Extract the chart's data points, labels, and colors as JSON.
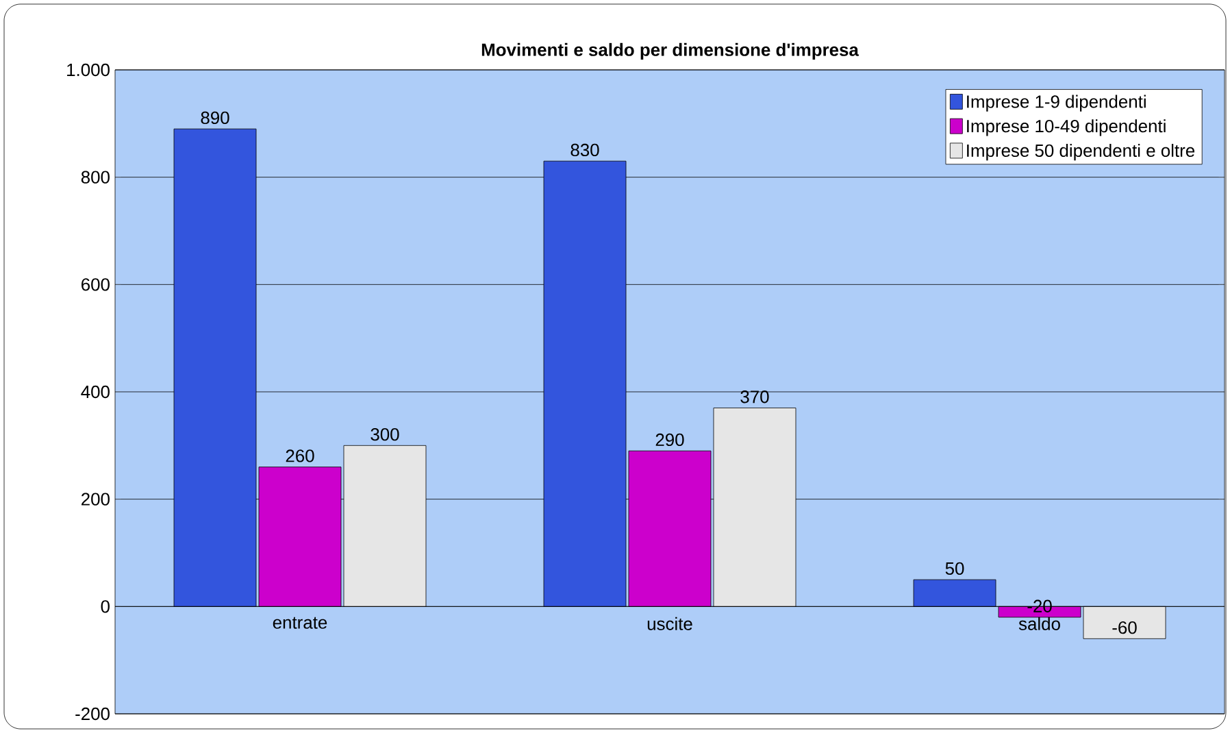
{
  "chart_data": {
    "type": "bar",
    "title": "Movimenti e saldo per dimensione d'impresa",
    "categories": [
      "entrate",
      "uscite",
      "saldo"
    ],
    "series": [
      {
        "name": "Imprese 1-9 dipendenti",
        "color": "#3355dd",
        "values": [
          890,
          830,
          50
        ]
      },
      {
        "name": "Imprese 10-49 dipendenti",
        "color": "#cc00cc",
        "values": [
          260,
          290,
          -20
        ]
      },
      {
        "name": "Imprese 50 dipendenti e oltre",
        "color": "#e6e6e6",
        "values": [
          300,
          370,
          -60
        ]
      }
    ],
    "ylim": [
      -200,
      1000
    ],
    "yticks": [
      -200,
      0,
      200,
      400,
      600,
      800,
      {
        "value": 1000,
        "label": "1.000"
      }
    ],
    "grid": "y",
    "legend": "top right",
    "data_labels": true
  }
}
